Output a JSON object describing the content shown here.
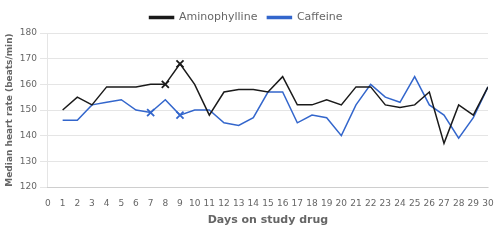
{
  "chart_data": {
    "type": "line",
    "xlabel": "Days on study drug",
    "ylabel": "Median heart rate (beats/min)",
    "x": [
      1,
      2,
      3,
      4,
      5,
      6,
      7,
      8,
      9,
      10,
      11,
      12,
      13,
      14,
      15,
      16,
      17,
      18,
      19,
      20,
      21,
      22,
      23,
      24,
      25,
      26,
      27,
      28,
      29,
      30
    ],
    "series": [
      {
        "name": "Aminophylline",
        "color": "#1a1a1a",
        "values": [
          150,
          155,
          152,
          159,
          159,
          159,
          160,
          160,
          168,
          160,
          148,
          157,
          158,
          158,
          157,
          163,
          152,
          152,
          154,
          152,
          159,
          159,
          152,
          151,
          152,
          157,
          137,
          152,
          148,
          159
        ],
        "marker": "x",
        "marked_x": [
          8,
          9
        ],
        "marked_values": [
          160,
          168
        ]
      },
      {
        "name": "Caffeine",
        "color": "#3366cc",
        "values": [
          146,
          146,
          152,
          153,
          154,
          150,
          149,
          154,
          148,
          150,
          150,
          145,
          144,
          147,
          157,
          157,
          145,
          148,
          147,
          140,
          152,
          160,
          155,
          153,
          163,
          152,
          148,
          139,
          147,
          159
        ],
        "marker": "x",
        "marked_x": [
          7,
          9
        ],
        "marked_values": [
          149,
          148
        ]
      }
    ],
    "xlim": [
      0,
      30
    ],
    "xticks": [
      0,
      1,
      2,
      3,
      4,
      5,
      6,
      7,
      8,
      9,
      10,
      11,
      12,
      13,
      14,
      15,
      16,
      17,
      18,
      19,
      20,
      21,
      22,
      23,
      24,
      25,
      26,
      27,
      28,
      29,
      30
    ],
    "ylim": [
      120,
      180
    ],
    "yticks": [
      120,
      130,
      140,
      150,
      160,
      170,
      180
    ],
    "grid": "y",
    "legend": "top"
  }
}
